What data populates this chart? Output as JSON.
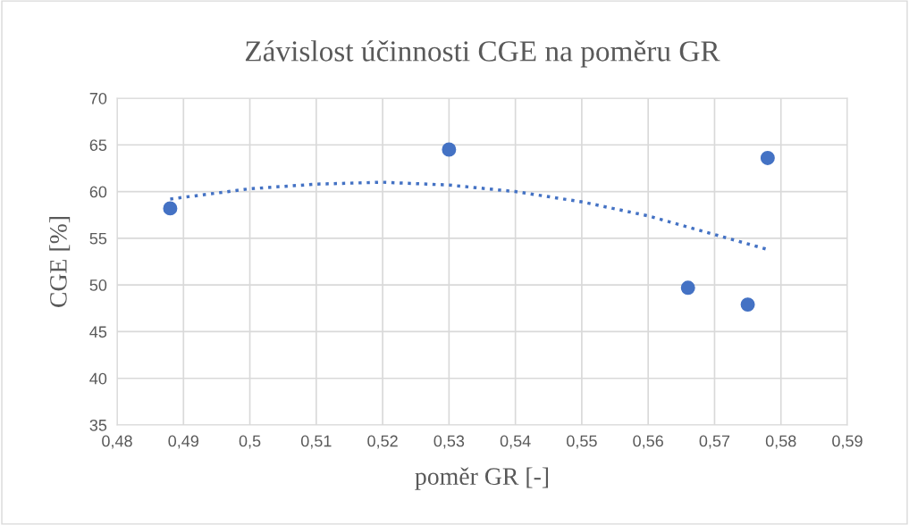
{
  "chart_data": {
    "type": "scatter",
    "title": "Závislost účinnosti CGE na poměru GR",
    "xlabel": "poměr GR [-]",
    "ylabel": "CGE [%]",
    "series": [
      {
        "color": "#4472c4",
        "marker": "circle",
        "x": [
          0.488,
          0.53,
          0.566,
          0.575,
          0.578
        ],
        "values": [
          58.2,
          64.5,
          49.7,
          47.9,
          63.6
        ]
      },
      {
        "type": "line",
        "color": "#4472c4",
        "line_style": "dotted",
        "marker": "none",
        "x": [
          0.488,
          0.5,
          0.51,
          0.52,
          0.53,
          0.54,
          0.55,
          0.56,
          0.57,
          0.578
        ],
        "values": [
          59.2,
          60.3,
          60.8,
          61.0,
          60.7,
          60.0,
          58.9,
          57.4,
          55.4,
          53.8
        ]
      }
    ],
    "xlim": [
      0.48,
      0.59
    ],
    "xticks": [
      {
        "value": 0.48,
        "label": "0,48"
      },
      {
        "value": 0.49,
        "label": "0,49"
      },
      {
        "value": 0.5,
        "label": "0,5"
      },
      {
        "value": 0.51,
        "label": "0,51"
      },
      {
        "value": 0.52,
        "label": "0,52"
      },
      {
        "value": 0.53,
        "label": "0,53"
      },
      {
        "value": 0.54,
        "label": "0,54"
      },
      {
        "value": 0.55,
        "label": "0,55"
      },
      {
        "value": 0.56,
        "label": "0,56"
      },
      {
        "value": 0.57,
        "label": "0,57"
      },
      {
        "value": 0.58,
        "label": "0,58"
      },
      {
        "value": 0.59,
        "label": "0,59"
      }
    ],
    "ylim": [
      35,
      70
    ],
    "yticks": [
      35,
      40,
      45,
      50,
      55,
      60,
      65,
      70
    ],
    "grid": true
  }
}
